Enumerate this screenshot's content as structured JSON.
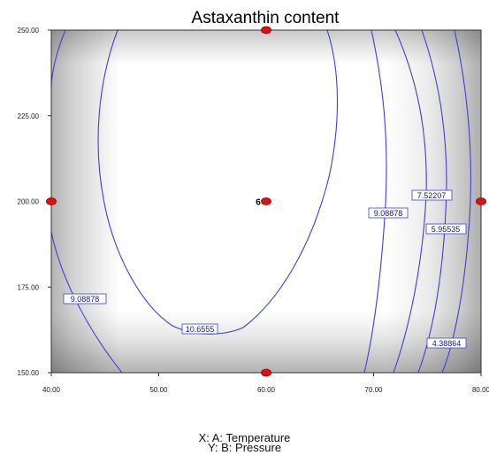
{
  "chart_data": {
    "type": "contour",
    "title": "Astaxanthin content",
    "xlabel": "X: A: Temperature",
    "ylabel": "Y: B: Pressure",
    "xlim": [
      40,
      80
    ],
    "ylim": [
      150,
      250
    ],
    "x_ticks": [
      "40.00",
      "50.00",
      "60.00",
      "70.00",
      "80.00"
    ],
    "y_ticks": [
      "150.00",
      "175.00",
      "200.00",
      "225.00",
      "250.00"
    ],
    "contour_levels": [
      "4.38864",
      "5.95535",
      "7.52207",
      "9.08878",
      "10.6555"
    ],
    "design_points": [
      {
        "x": 60,
        "y": 250
      },
      {
        "x": 40,
        "y": 200
      },
      {
        "x": 60,
        "y": 200,
        "label": "6"
      },
      {
        "x": 80,
        "y": 200
      },
      {
        "x": 60,
        "y": 150
      }
    ],
    "colors": {
      "contour": "#4040d0",
      "point": "#dd1111",
      "point_edge": "#880000"
    }
  }
}
